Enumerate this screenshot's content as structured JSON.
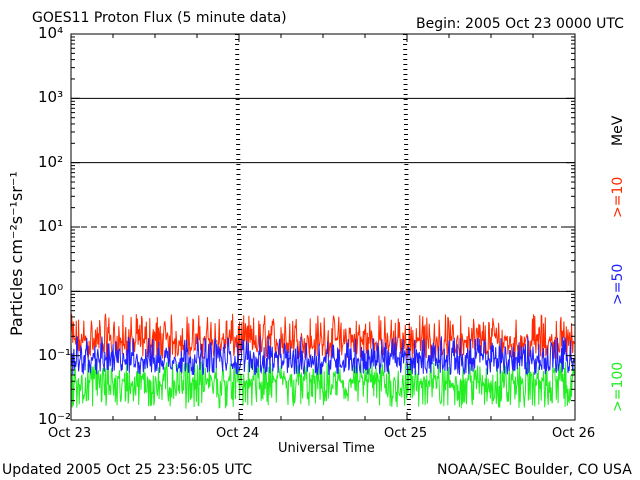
{
  "header": {
    "title": "GOES11 Proton Flux (5 minute data)",
    "begin": "Begin: 2005 Oct 23 0000 UTC"
  },
  "footer": {
    "updated": "Updated 2005 Oct 25 23:56:05 UTC",
    "credit": "NOAA/SEC Boulder, CO USA"
  },
  "chart_data": {
    "type": "line",
    "title": "GOES11 Proton Flux (5 minute data)",
    "xlabel": "Universal Time",
    "ylabel": "Particles cm⁻²s⁻¹sr⁻¹",
    "yscale": "log",
    "ylim": [
      0.01,
      10000
    ],
    "ytick_labels": [
      "10⁻²",
      "10⁻¹",
      "10⁰",
      "10¹",
      "10²",
      "10³",
      "10⁴"
    ],
    "ytick_values": [
      0.01,
      0.1,
      1,
      10,
      100,
      1000,
      10000
    ],
    "xlim": [
      "2005-10-23",
      "2005-10-26"
    ],
    "xtick_labels": [
      "Oct 23",
      "Oct 24",
      "Oct 25",
      "Oct 26"
    ],
    "reference_lines": [
      {
        "value": 1,
        "style": "solid"
      },
      {
        "value": 10,
        "style": "dashed"
      },
      {
        "value": 100,
        "style": "solid"
      },
      {
        "value": 1000,
        "style": "solid"
      }
    ],
    "series": [
      {
        "name": ">=10",
        "color": "#ff2a00",
        "typical": 0.17,
        "range": [
          0.09,
          0.45
        ]
      },
      {
        "name": ">=50",
        "color": "#2020ff",
        "typical": 0.09,
        "range": [
          0.05,
          0.2
        ]
      },
      {
        "name": ">=100",
        "color": "#22ee22",
        "typical": 0.04,
        "range": [
          0.015,
          0.08
        ]
      }
    ],
    "legend_unit": "MeV",
    "legend_position": "right"
  }
}
